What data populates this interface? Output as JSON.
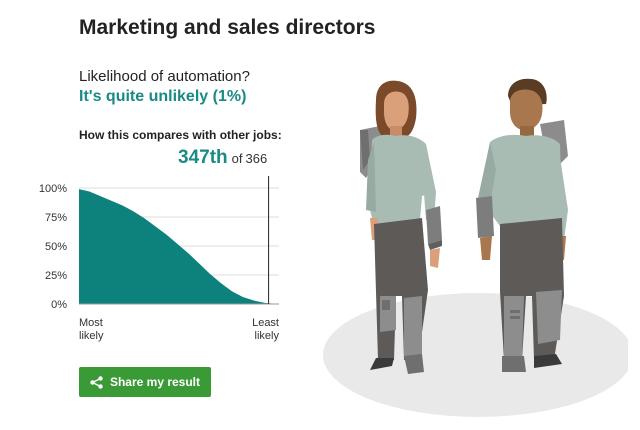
{
  "page": {
    "title": "Marketing and sales directors",
    "question": "Likelihood of automation?",
    "answer": "It's quite unlikely (1%)",
    "compare_label": "How this compares with other jobs:",
    "rank": "347th",
    "rank_of": "of",
    "rank_total": "366"
  },
  "share": {
    "label": "Share my result",
    "icon": "share-icon"
  },
  "colors": {
    "accent": "#1a8a85",
    "chart_fill": "#0d827d",
    "button": "#3a9a36"
  },
  "chart_data": {
    "type": "area",
    "title": "",
    "xlabel": "",
    "ylabel": "",
    "ylim": [
      0,
      100
    ],
    "yticks": [
      "100%",
      "75%",
      "50%",
      "25%",
      "0%"
    ],
    "x_left_label": [
      "Most",
      "likely"
    ],
    "x_right_label": [
      "Least",
      "likely"
    ],
    "x_range": [
      1,
      366
    ],
    "marker_rank": 347,
    "grid": true,
    "series": [
      {
        "x": [
          1,
          20,
          40,
          60,
          80,
          100,
          120,
          140,
          160,
          180,
          200,
          220,
          240,
          260,
          280,
          300,
          320,
          340,
          350,
          366
        ],
        "values": [
          99,
          97,
          93,
          89,
          85,
          80,
          74,
          67,
          60,
          52,
          44,
          35,
          26,
          18,
          11,
          6,
          3,
          1,
          0.5,
          0
        ]
      }
    ]
  },
  "illustration": {
    "description_icon": "two-people-with-robot-parts-icon"
  }
}
